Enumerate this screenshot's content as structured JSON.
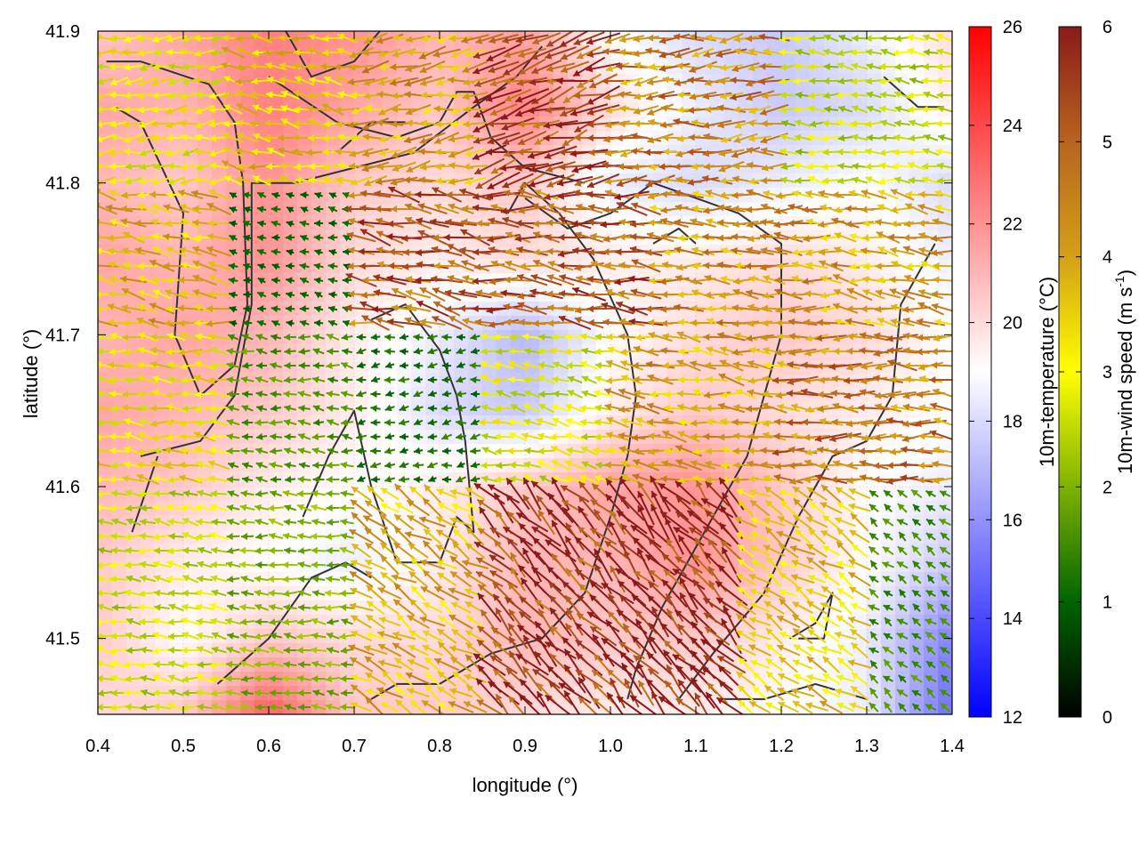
{
  "chart_data": {
    "type": "heatmap",
    "xlabel": "longitude (°)",
    "ylabel": "latitude (°)",
    "xlim": [
      0.4,
      1.4
    ],
    "ylim": [
      41.45,
      41.9
    ],
    "x_ticks": [
      "0.4",
      "0.5",
      "0.6",
      "0.7",
      "0.8",
      "0.9",
      "1.0",
      "1.1",
      "1.2",
      "1.3",
      "1.4"
    ],
    "y_ticks": [
      "41.5",
      "41.6",
      "41.7",
      "41.8",
      "41.9"
    ],
    "grid": "dotted",
    "temperature_colorbar": {
      "label": "10m-temperature (°C)",
      "range": [
        12,
        26
      ],
      "ticks": [
        "12",
        "14",
        "16",
        "18",
        "20",
        "22",
        "24",
        "26"
      ],
      "colors": [
        "#0000ff",
        "#ffffff",
        "#ff0000"
      ]
    },
    "wind_colorbar": {
      "label": "10m-wind speed (m s",
      "label_sup": "-1",
      "label_end": ")",
      "range": [
        0,
        6
      ],
      "ticks": [
        "0",
        "1",
        "2",
        "3",
        "4",
        "5",
        "6"
      ],
      "colors": [
        "#000000",
        "#006400",
        "#7fb200",
        "#ffff00",
        "#d4a017",
        "#b8641e",
        "#8b1a1a"
      ]
    },
    "temperature_field": {
      "lon": [
        0.4,
        0.5,
        0.6,
        0.7,
        0.8,
        0.9,
        1.0,
        1.1,
        1.2,
        1.3,
        1.4
      ],
      "lat": [
        41.9,
        41.85,
        41.8,
        41.75,
        41.7,
        41.65,
        41.6,
        41.55,
        41.5,
        41.45
      ],
      "values": [
        [
          20.5,
          21.5,
          22.5,
          22.0,
          21.0,
          21.5,
          19.0,
          18.0,
          17.5,
          18.5,
          20.0
        ],
        [
          21.5,
          21.0,
          22.5,
          21.5,
          20.5,
          22.5,
          20.0,
          18.5,
          17.5,
          18.0,
          19.5
        ],
        [
          21.0,
          20.5,
          22.0,
          20.5,
          20.0,
          20.5,
          18.5,
          18.0,
          18.5,
          19.0,
          18.0
        ],
        [
          21.5,
          21.0,
          22.0,
          20.0,
          19.5,
          20.0,
          19.5,
          19.5,
          20.0,
          19.5,
          18.5
        ],
        [
          21.0,
          21.5,
          21.0,
          19.5,
          18.5,
          17.0,
          19.0,
          20.0,
          20.5,
          20.0,
          19.0
        ],
        [
          21.5,
          21.0,
          20.5,
          19.5,
          18.0,
          17.5,
          19.5,
          20.5,
          20.0,
          19.5,
          19.0
        ],
        [
          21.0,
          20.5,
          19.5,
          19.0,
          19.5,
          20.5,
          21.5,
          22.0,
          20.5,
          19.0,
          18.5
        ],
        [
          20.5,
          19.5,
          19.0,
          18.5,
          19.5,
          21.0,
          21.0,
          22.0,
          20.5,
          19.0,
          17.5
        ],
        [
          20.5,
          19.0,
          20.5,
          20.0,
          20.0,
          21.0,
          20.5,
          20.5,
          19.5,
          18.5,
          15.5
        ],
        [
          20.0,
          20.5,
          23.5,
          20.5,
          20.5,
          20.0,
          19.5,
          19.5,
          19.0,
          18.5,
          15.0
        ]
      ]
    },
    "wind_field_notes": "Wind vectors: predominantly westward flow; strongest (5-6 m/s) easterly winds in the north around lon 0.85-1.0 and in the southeast around lon 0.85-1.15; weak winds (<1.5 m/s) in the central west around lon 0.6-0.85, lat 41.55-41.7.",
    "wind_regions": [
      {
        "lon": [
          0.4,
          0.55
        ],
        "lat": [
          41.8,
          41.9
        ],
        "u": -2.5,
        "v": -0.3,
        "speed": 3.0
      },
      {
        "lon": [
          0.55,
          0.7
        ],
        "lat": [
          41.8,
          41.9
        ],
        "u": -2.8,
        "v": 0.5,
        "speed": 3.5
      },
      {
        "lon": [
          0.7,
          0.85
        ],
        "lat": [
          41.8,
          41.9
        ],
        "u": -3.5,
        "v": -0.5,
        "speed": 4.0
      },
      {
        "lon": [
          0.85,
          1.0
        ],
        "lat": [
          41.8,
          41.9
        ],
        "u": -5.0,
        "v": -1.5,
        "speed": 5.5
      },
      {
        "lon": [
          1.0,
          1.2
        ],
        "lat": [
          41.8,
          41.9
        ],
        "u": -4.2,
        "v": -0.3,
        "speed": 4.5
      },
      {
        "lon": [
          1.2,
          1.4
        ],
        "lat": [
          41.8,
          41.9
        ],
        "u": -2.0,
        "v": 0.2,
        "speed": 2.5
      },
      {
        "lon": [
          0.4,
          0.55
        ],
        "lat": [
          41.7,
          41.8
        ],
        "u": -3.2,
        "v": 0.6,
        "speed": 3.8
      },
      {
        "lon": [
          0.55,
          0.7
        ],
        "lat": [
          41.7,
          41.8
        ],
        "u": -0.8,
        "v": 0.2,
        "speed": 1.0
      },
      {
        "lon": [
          0.7,
          0.85
        ],
        "lat": [
          41.7,
          41.8
        ],
        "u": -4.8,
        "v": 1.0,
        "speed": 5.0
      },
      {
        "lon": [
          0.85,
          1.05
        ],
        "lat": [
          41.7,
          41.8
        ],
        "u": -5.0,
        "v": 0.5,
        "speed": 5.0
      },
      {
        "lon": [
          1.05,
          1.25
        ],
        "lat": [
          41.7,
          41.8
        ],
        "u": -4.0,
        "v": 0.2,
        "speed": 4.2
      },
      {
        "lon": [
          1.25,
          1.4
        ],
        "lat": [
          41.7,
          41.8
        ],
        "u": -3.8,
        "v": 0.5,
        "speed": 4.0
      },
      {
        "lon": [
          0.4,
          0.55
        ],
        "lat": [
          41.6,
          41.7
        ],
        "u": -3.0,
        "v": 0.3,
        "speed": 3.2
      },
      {
        "lon": [
          0.55,
          0.7
        ],
        "lat": [
          41.6,
          41.7
        ],
        "u": -1.5,
        "v": 0.2,
        "speed": 1.6
      },
      {
        "lon": [
          0.7,
          0.85
        ],
        "lat": [
          41.6,
          41.7
        ],
        "u": -1.2,
        "v": -0.2,
        "speed": 1.2
      },
      {
        "lon": [
          0.85,
          1.0
        ],
        "lat": [
          41.6,
          41.7
        ],
        "u": -2.5,
        "v": 0.5,
        "speed": 2.8
      },
      {
        "lon": [
          1.0,
          1.2
        ],
        "lat": [
          41.6,
          41.7
        ],
        "u": -4.0,
        "v": 0.5,
        "speed": 4.0
      },
      {
        "lon": [
          1.2,
          1.4
        ],
        "lat": [
          41.6,
          41.7
        ],
        "u": -4.5,
        "v": 0.2,
        "speed": 4.6
      },
      {
        "lon": [
          0.4,
          0.55
        ],
        "lat": [
          41.45,
          41.6
        ],
        "u": -2.4,
        "v": 0.3,
        "speed": 2.6
      },
      {
        "lon": [
          0.55,
          0.7
        ],
        "lat": [
          41.45,
          41.6
        ],
        "u": -2.0,
        "v": 0.2,
        "speed": 2.0
      },
      {
        "lon": [
          0.7,
          0.85
        ],
        "lat": [
          41.45,
          41.6
        ],
        "u": -3.0,
        "v": 1.8,
        "speed": 3.8
      },
      {
        "lon": [
          0.85,
          1.0
        ],
        "lat": [
          41.45,
          41.6
        ],
        "u": -3.5,
        "v": 3.5,
        "speed": 5.6
      },
      {
        "lon": [
          1.0,
          1.15
        ],
        "lat": [
          41.45,
          41.6
        ],
        "u": -3.2,
        "v": 3.5,
        "speed": 5.8
      },
      {
        "lon": [
          1.15,
          1.3
        ],
        "lat": [
          41.45,
          41.6
        ],
        "u": -2.5,
        "v": 1.5,
        "speed": 3.5
      },
      {
        "lon": [
          1.3,
          1.4
        ],
        "lat": [
          41.45,
          41.6
        ],
        "u": -1.0,
        "v": 0.8,
        "speed": 1.5
      }
    ],
    "contour_lines": [
      [
        [
          0.41,
          41.88
        ],
        [
          0.45,
          41.88
        ],
        [
          0.53,
          41.865
        ],
        [
          0.56,
          41.84
        ],
        [
          0.57,
          41.8
        ],
        [
          0.575,
          41.72
        ],
        [
          0.56,
          41.68
        ],
        [
          0.52,
          41.66
        ],
        [
          0.49,
          41.7
        ],
        [
          0.5,
          41.78
        ],
        [
          0.45,
          41.84
        ],
        [
          0.42,
          41.85
        ]
      ],
      [
        [
          0.45,
          41.62
        ],
        [
          0.52,
          41.63
        ],
        [
          0.56,
          41.66
        ],
        [
          0.58,
          41.72
        ],
        [
          0.58,
          41.8
        ],
        [
          0.63,
          41.8
        ],
        [
          0.7,
          41.81
        ],
        [
          0.77,
          41.82
        ],
        [
          0.84,
          41.85
        ],
        [
          0.89,
          41.87
        ],
        [
          0.92,
          41.89
        ]
      ],
      [
        [
          0.44,
          41.57
        ],
        [
          0.47,
          41.62
        ]
      ],
      [
        [
          0.6,
          41.87
        ],
        [
          0.68,
          41.84
        ],
        [
          0.75,
          41.83
        ],
        [
          0.8,
          41.84
        ],
        [
          0.82,
          41.86
        ],
        [
          0.84,
          41.86
        ],
        [
          0.86,
          41.83
        ],
        [
          0.9,
          41.81
        ],
        [
          0.97,
          41.8
        ]
      ],
      [
        [
          0.62,
          41.9
        ],
        [
          0.65,
          41.87
        ],
        [
          0.7,
          41.88
        ],
        [
          0.73,
          41.9
        ]
      ],
      [
        [
          0.68,
          41.82
        ],
        [
          0.72,
          41.84
        ],
        [
          0.76,
          41.84
        ]
      ],
      [
        [
          0.88,
          41.78
        ],
        [
          0.9,
          41.8
        ],
        [
          0.94,
          41.78
        ],
        [
          0.98,
          41.75
        ],
        [
          1.02,
          41.7
        ],
        [
          1.03,
          41.66
        ],
        [
          1.02,
          41.62
        ],
        [
          1.0,
          41.58
        ],
        [
          0.97,
          41.53
        ],
        [
          0.92,
          41.5
        ],
        [
          0.86,
          41.49
        ],
        [
          0.8,
          41.47
        ],
        [
          0.75,
          41.47
        ],
        [
          0.72,
          41.46
        ]
      ],
      [
        [
          0.64,
          41.58
        ],
        [
          0.67,
          41.62
        ],
        [
          0.7,
          41.65
        ],
        [
          0.72,
          41.6
        ],
        [
          0.75,
          41.55
        ],
        [
          0.8,
          41.55
        ],
        [
          0.82,
          41.58
        ],
        [
          0.84,
          41.57
        ],
        [
          0.83,
          41.63
        ],
        [
          0.82,
          41.66
        ],
        [
          0.8,
          41.69
        ],
        [
          0.76,
          41.72
        ],
        [
          0.72,
          41.71
        ]
      ],
      [
        [
          0.54,
          41.47
        ],
        [
          0.6,
          41.5
        ],
        [
          0.65,
          41.54
        ],
        [
          0.69,
          41.55
        ],
        [
          0.72,
          41.54
        ]
      ],
      [
        [
          0.9,
          41.79
        ],
        [
          0.95,
          41.77
        ],
        [
          1.0,
          41.78
        ],
        [
          1.05,
          41.8
        ],
        [
          1.1,
          41.79
        ],
        [
          1.15,
          41.78
        ],
        [
          1.2,
          41.76
        ],
        [
          1.2,
          41.7
        ],
        [
          1.16,
          41.62
        ],
        [
          1.1,
          41.56
        ],
        [
          1.06,
          41.52
        ],
        [
          1.03,
          41.48
        ],
        [
          1.02,
          41.46
        ]
      ],
      [
        [
          1.05,
          41.76
        ],
        [
          1.08,
          41.77
        ],
        [
          1.1,
          41.76
        ]
      ],
      [
        [
          1.38,
          41.76
        ],
        [
          1.34,
          41.72
        ],
        [
          1.33,
          41.66
        ],
        [
          1.3,
          41.63
        ],
        [
          1.26,
          41.62
        ],
        [
          1.22,
          41.58
        ],
        [
          1.18,
          41.53
        ],
        [
          1.12,
          41.49
        ],
        [
          1.08,
          41.46
        ]
      ],
      [
        [
          1.22,
          41.5
        ],
        [
          1.25,
          41.5
        ],
        [
          1.26,
          41.53
        ],
        [
          1.24,
          41.51
        ],
        [
          1.21,
          41.5
        ]
      ],
      [
        [
          1.3,
          41.46
        ],
        [
          1.24,
          41.47
        ],
        [
          1.18,
          41.46
        ],
        [
          1.13,
          41.46
        ]
      ],
      [
        [
          1.32,
          41.87
        ],
        [
          1.34,
          41.86
        ],
        [
          1.36,
          41.85
        ],
        [
          1.39,
          41.85
        ]
      ]
    ]
  }
}
